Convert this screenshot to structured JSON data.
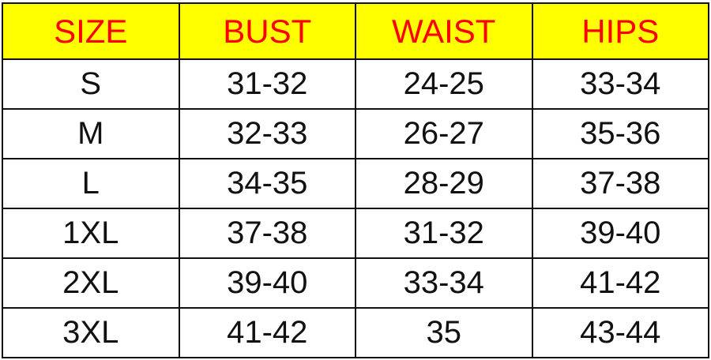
{
  "header_bg": "#ffff00",
  "header_color": "#ff0000",
  "headers": [
    "SIZE",
    "BUST",
    "WAIST",
    "HIPS"
  ],
  "rows": [
    [
      "S",
      "31-32",
      "24-25",
      "33-34"
    ],
    [
      "M",
      "32-33",
      "26-27",
      "35-36"
    ],
    [
      "L",
      "34-35",
      "28-29",
      "37-38"
    ],
    [
      "1XL",
      "37-38",
      "31-32",
      "39-40"
    ],
    [
      "2XL",
      "39-40",
      "33-34",
      "41-42"
    ],
    [
      "3XL",
      "41-42",
      "35",
      "43-44"
    ]
  ]
}
